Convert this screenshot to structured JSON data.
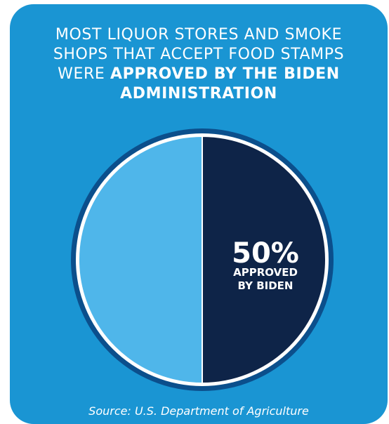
{
  "title": {
    "line1": "MOST LIQUOR STORES AND SMOKE",
    "line2": "SHOPS THAT ACCEPT FOOD STAMPS",
    "line3_normal": "WERE ",
    "line3_bold": "APPROVED BY THE BIDEN",
    "line4_bold": "ADMINISTRATION"
  },
  "source": "Source: U.S. Department of Agriculture",
  "colors": {
    "background": "#1a95d3",
    "ring": "#0b4f8c",
    "approved_slice": "#0e2448",
    "other_slice": "#4fb6ea",
    "text": "#ffffff"
  },
  "chart_data": {
    "type": "pie",
    "slices": [
      {
        "value": 50,
        "percent_label": "50%",
        "label_line1": "APPROVED",
        "label_line2": "BY BIDEN",
        "color": "#0e2448"
      },
      {
        "value": 50,
        "color": "#4fb6ea"
      }
    ]
  }
}
